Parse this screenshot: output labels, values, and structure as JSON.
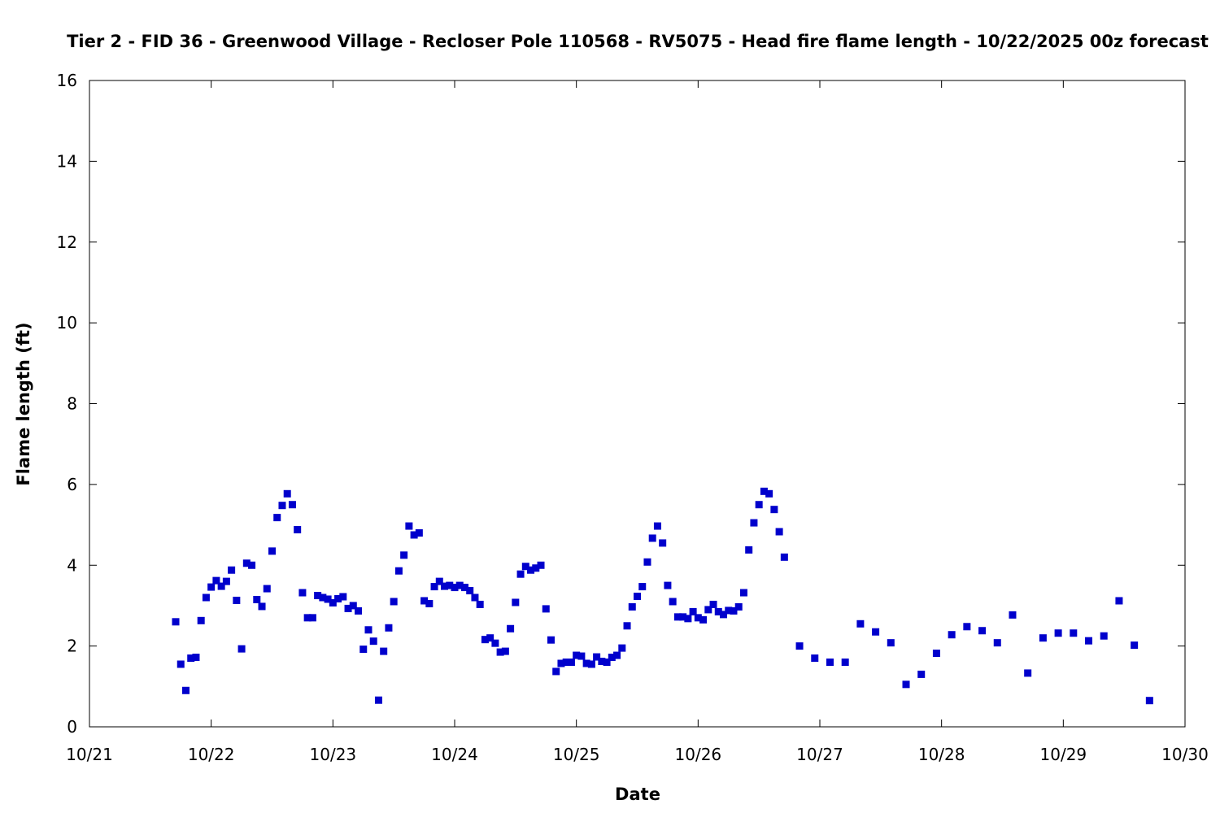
{
  "chart_data": {
    "type": "scatter",
    "title": "Tier 2 - FID 36 - Greenwood Village - Recloser Pole 110568 - RV5075 - Head fire flame length - 10/22/2025 00z forecast",
    "xlabel": "Date",
    "ylabel": "Flame length (ft)",
    "xlim": [
      "10/21",
      "10/30"
    ],
    "ylim": [
      0,
      16
    ],
    "x_ticks": [
      "10/21",
      "10/22",
      "10/23",
      "10/24",
      "10/25",
      "10/26",
      "10/27",
      "10/28",
      "10/29",
      "10/30"
    ],
    "y_ticks": [
      "0",
      "2",
      "4",
      "6",
      "8",
      "10",
      "12",
      "14",
      "16"
    ],
    "grid": false,
    "legend": "none",
    "marker_color": "#0000cc",
    "series": [
      {
        "x": [
          "10/21 17:00",
          "10/21 18:00",
          "10/21 19:00",
          "10/21 20:00",
          "10/21 21:00",
          "10/21 22:00",
          "10/21 23:00",
          "10/22 00:00",
          "10/22 01:00",
          "10/22 02:00",
          "10/22 03:00",
          "10/22 04:00",
          "10/22 05:00",
          "10/22 06:00",
          "10/22 07:00",
          "10/22 08:00",
          "10/22 09:00",
          "10/22 10:00",
          "10/22 11:00",
          "10/22 12:00",
          "10/22 13:00",
          "10/22 14:00",
          "10/22 15:00",
          "10/22 16:00",
          "10/22 17:00",
          "10/22 18:00",
          "10/22 19:00",
          "10/22 20:00",
          "10/22 21:00",
          "10/22 22:00",
          "10/22 23:00",
          "10/23 00:00",
          "10/23 01:00",
          "10/23 02:00",
          "10/23 03:00",
          "10/23 04:00",
          "10/23 05:00",
          "10/23 06:00",
          "10/23 07:00",
          "10/23 08:00",
          "10/23 09:00",
          "10/23 10:00",
          "10/23 11:00",
          "10/23 12:00",
          "10/23 13:00",
          "10/23 14:00",
          "10/23 15:00",
          "10/23 16:00",
          "10/23 17:00",
          "10/23 18:00",
          "10/23 19:00",
          "10/23 20:00",
          "10/23 21:00",
          "10/23 22:00",
          "10/23 23:00",
          "10/24 00:00",
          "10/24 01:00",
          "10/24 02:00",
          "10/24 03:00",
          "10/24 04:00",
          "10/24 05:00",
          "10/24 06:00",
          "10/24 07:00",
          "10/24 08:00",
          "10/24 09:00",
          "10/24 10:00",
          "10/24 11:00",
          "10/24 12:00",
          "10/24 13:00",
          "10/24 14:00",
          "10/24 15:00",
          "10/24 16:00",
          "10/24 17:00",
          "10/24 18:00",
          "10/24 19:00",
          "10/24 20:00",
          "10/24 21:00",
          "10/24 22:00",
          "10/24 23:00",
          "10/25 00:00",
          "10/25 01:00",
          "10/25 02:00",
          "10/25 03:00",
          "10/25 04:00",
          "10/25 05:00",
          "10/25 06:00",
          "10/25 07:00",
          "10/25 08:00",
          "10/25 09:00",
          "10/25 10:00",
          "10/25 11:00",
          "10/25 12:00",
          "10/25 13:00",
          "10/25 14:00",
          "10/25 15:00",
          "10/25 16:00",
          "10/25 17:00",
          "10/25 18:00",
          "10/25 19:00",
          "10/25 20:00",
          "10/25 21:00",
          "10/25 22:00",
          "10/25 23:00",
          "10/26 00:00",
          "10/26 01:00",
          "10/26 02:00",
          "10/26 03:00",
          "10/26 04:00",
          "10/26 05:00",
          "10/26 06:00",
          "10/26 07:00",
          "10/26 08:00",
          "10/26 09:00",
          "10/26 10:00",
          "10/26 11:00",
          "10/26 12:00",
          "10/26 13:00",
          "10/26 14:00",
          "10/26 15:00",
          "10/26 16:00",
          "10/26 17:00",
          "10/26 20:00",
          "10/26 23:00",
          "10/27 02:00",
          "10/27 05:00",
          "10/27 08:00",
          "10/27 11:00",
          "10/27 14:00",
          "10/27 17:00",
          "10/27 20:00",
          "10/27 23:00",
          "10/28 02:00",
          "10/28 05:00",
          "10/28 08:00",
          "10/28 11:00",
          "10/28 14:00",
          "10/28 17:00",
          "10/28 20:00",
          "10/28 23:00",
          "10/29 02:00",
          "10/29 05:00",
          "10/29 08:00",
          "10/29 11:00",
          "10/29 14:00",
          "10/29 17:00"
        ],
        "y": [
          2.6,
          1.55,
          0.9,
          1.7,
          1.72,
          2.63,
          3.2,
          3.46,
          3.62,
          3.48,
          3.6,
          3.88,
          3.13,
          1.93,
          4.05,
          4.0,
          3.15,
          2.98,
          3.42,
          4.35,
          5.18,
          5.48,
          5.77,
          5.5,
          4.88,
          3.32,
          2.7,
          2.7,
          3.25,
          3.2,
          3.16,
          3.07,
          3.17,
          3.22,
          2.93,
          3.0,
          2.87,
          1.92,
          2.4,
          2.12,
          0.66,
          1.87,
          2.45,
          3.1,
          3.86,
          4.25,
          4.97,
          4.75,
          4.8,
          3.12,
          3.05,
          3.47,
          3.6,
          3.48,
          3.5,
          3.45,
          3.5,
          3.45,
          3.37,
          3.2,
          3.03,
          2.16,
          2.2,
          2.07,
          1.85,
          1.87,
          2.43,
          3.08,
          3.78,
          3.97,
          3.88,
          3.93,
          4.0,
          2.92,
          2.15,
          1.37,
          1.57,
          1.6,
          1.6,
          1.77,
          1.75,
          1.57,
          1.55,
          1.73,
          1.62,
          1.6,
          1.72,
          1.77,
          1.95,
          2.5,
          2.97,
          3.23,
          3.47,
          4.08,
          4.67,
          4.97,
          4.55,
          3.5,
          3.1,
          2.72,
          2.72,
          2.68,
          2.85,
          2.7,
          2.65,
          2.9,
          3.03,
          2.85,
          2.78,
          2.88,
          2.87,
          2.97,
          3.32,
          4.38,
          5.05,
          5.5,
          5.83,
          5.77,
          5.38,
          4.83,
          4.2,
          2.0,
          1.7,
          1.6,
          1.6,
          2.55,
          2.35,
          2.08,
          1.05,
          1.3,
          1.82,
          2.28,
          2.48,
          2.38,
          2.08,
          2.77,
          1.33,
          2.2,
          2.32,
          2.32,
          2.13,
          2.25,
          3.12,
          2.02,
          0.65
        ]
      }
    ]
  }
}
